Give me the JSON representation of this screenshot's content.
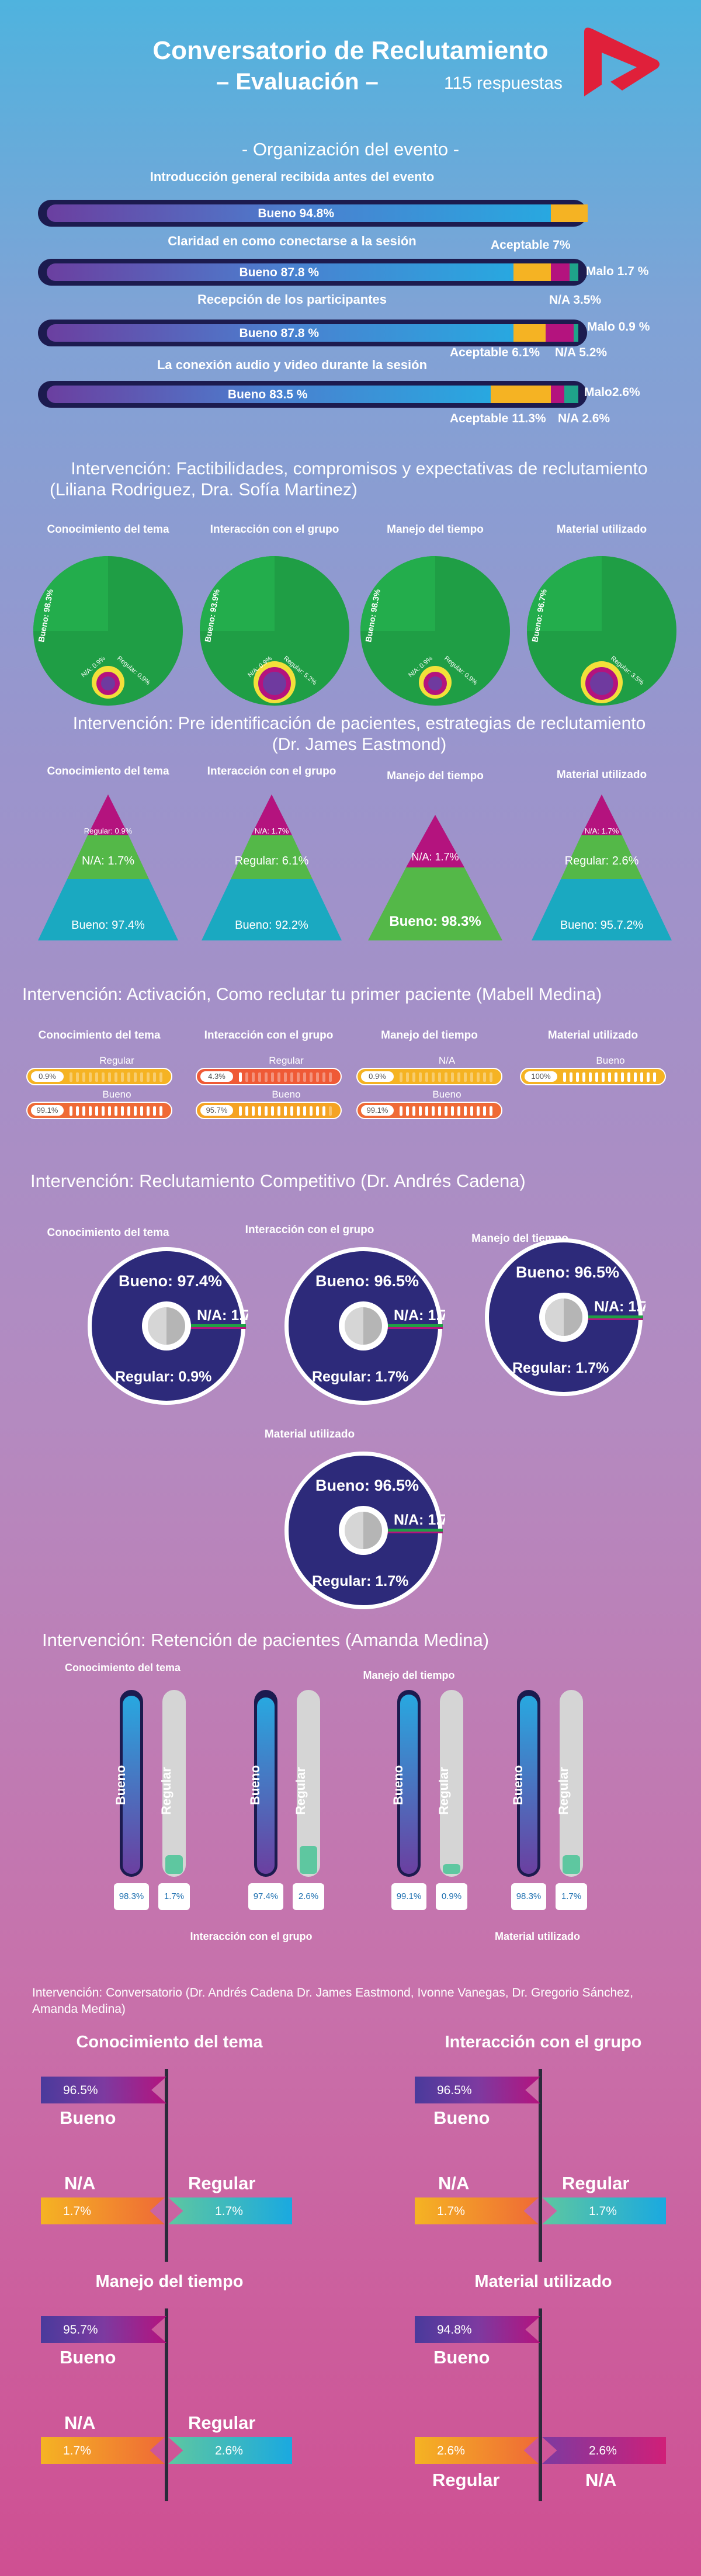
{
  "header": {
    "title": "Conversatorio de Reclutamiento",
    "subtitle": "– Evaluación –",
    "responses": "115 respuestas"
  },
  "colors": {
    "navy": "#1c1b4f",
    "green": "#1f9e45",
    "teal": "#1aa9c1",
    "magenta": "#b4137e",
    "yellow": "#f5b323",
    "orange": "#ef6a36",
    "red": "#e0203a",
    "lightgreen": "#7fc45a"
  },
  "org": {
    "title": "- Organización del evento -",
    "rows": [
      {
        "question": "Introducción general recibida antes del evento",
        "bueno_label": "Bueno 94.8%",
        "bueno": 94.8,
        "aceptable": 7,
        "malo": 0,
        "na": 0,
        "side_labels": [
          "Aceptable 7%"
        ]
      },
      {
        "question": "Claridad en como conectarse a la sesión",
        "bueno_label": "Bueno 87.8 %",
        "bueno": 87.8,
        "aceptable": 7,
        "malo": 1.7,
        "na": 3.5,
        "side_labels": [
          "Malo 1.7 %",
          "N/A 3.5%"
        ]
      },
      {
        "question": "Recepción de los participantes",
        "bueno_label": "Bueno 87.8 %",
        "bueno": 87.8,
        "aceptable": 6.1,
        "malo": 0.9,
        "na": 5.2,
        "side_labels": [
          "Malo 0.9 %",
          "Aceptable 6.1%",
          "N/A 5.2%"
        ]
      },
      {
        "question": "La conexión audio y video durante la sesión",
        "bueno_label": "Bueno 83.5 %",
        "bueno": 83.5,
        "aceptable": 11.3,
        "malo": 2.6,
        "na": 2.6,
        "side_labels": [
          "Malo2.6%",
          "Aceptable 11.3%",
          "N/A 2.6%"
        ]
      }
    ]
  },
  "int1": {
    "title": "Intervención: Factibilidades, compromisos y expectativas de reclutamiento",
    "speakers": "(Liliana Rodriguez, Dra. Sofía Martinez)",
    "charts": [
      {
        "label": "Conocimiento del tema",
        "bueno_label": "Bueno: 98.3%",
        "na_label": "N/A: 0.9%",
        "reg_label": "Regular: 0.9%",
        "bueno": 98.3,
        "regular": 0.9,
        "na": 0.9
      },
      {
        "label": "Interacción con el grupo",
        "bueno_label": "Bueno: 93.9%",
        "na_label": "N/A: 0.9%",
        "reg_label": "Regular: 5.2%",
        "bueno": 93.9,
        "regular": 5.2,
        "na": 0.9
      },
      {
        "label": "Manejo del tiempo",
        "bueno_label": "Bueno: 98.3%",
        "na_label": "N/A: 0.9%",
        "reg_label": "Regular: 0.9%",
        "bueno": 98.3,
        "regular": 0.9,
        "na": 0.9
      },
      {
        "label": "Material utilizado",
        "bueno_label": "Bueno: 96.7%",
        "na_label": "",
        "reg_label": "Regular: 3.5%",
        "bueno": 96.7,
        "regular": 3.5,
        "na": 0
      }
    ]
  },
  "int2": {
    "title": "Intervención: Pre identificación de pacientes, estrategias de reclutamiento",
    "speakers": "(Dr. James Eastmond)",
    "charts": [
      {
        "label": "Conocimiento del tema",
        "top": "Regular: 0.9%",
        "mid": "N/A: 1.7%",
        "bottom": "Bueno: 97.4%"
      },
      {
        "label": "Interacción con el grupo",
        "top": "N/A: 1.7%",
        "mid": "Regular: 6.1%",
        "bottom": "Bueno: 92.2%"
      },
      {
        "label": "Manejo del tiempo",
        "top": "",
        "mid": "N/A: 1.7%",
        "bottom": "Bueno: 98.3%"
      },
      {
        "label": "Material utilizado",
        "top": "N/A: 1.7%",
        "mid": "Regular: 2.6%",
        "bottom": "Bueno: 95.7.2%"
      }
    ]
  },
  "int3": {
    "title": "Intervención: Activación, Como reclutar tu primer paciente (Mabell Medina)",
    "charts": [
      {
        "label": "Conocimiento del tema",
        "bars": [
          {
            "cat": "Regular",
            "val": "0.9%",
            "pct": 0.9,
            "color": "#f5b323"
          },
          {
            "cat": "Bueno",
            "val": "99.1%",
            "pct": 99.1,
            "color": "#ef6a36"
          }
        ]
      },
      {
        "label": "Interacción con el grupo",
        "bars": [
          {
            "cat": "Regular",
            "val": "4.3%",
            "pct": 4.3,
            "color": "#ef5a36"
          },
          {
            "cat": "Bueno",
            "val": "95.7%",
            "pct": 95.7,
            "color": "#f5a323"
          }
        ]
      },
      {
        "label": "Manejo del tiempo",
        "bars": [
          {
            "cat": "N/A",
            "val": "0.9%",
            "pct": 0.9,
            "color": "#f5b323"
          },
          {
            "cat": "Bueno",
            "val": "99.1%",
            "pct": 99.1,
            "color": "#ef6a36"
          }
        ]
      },
      {
        "label": "Material utilizado",
        "bars": [
          {
            "cat": "Bueno",
            "val": "100%",
            "pct": 100,
            "color": "#f5b323"
          }
        ]
      }
    ]
  },
  "int4": {
    "title": "Intervención: Reclutamiento Competitivo (Dr. Andrés Cadena)",
    "charts": [
      {
        "label": "Conocimiento del tema",
        "bueno": "Bueno: 97.4%",
        "na": "N/A: 1.7%",
        "regular": "Regular: 0.9%"
      },
      {
        "label": "Interacción con el grupo",
        "bueno": "Bueno: 96.5%",
        "na": "N/A: 1.7%",
        "regular": "Regular: 1.7%"
      },
      {
        "label": "Manejo del tiempo",
        "bueno": "Bueno: 96.5%",
        "na": "N/A: 1.7%",
        "regular": "Regular: 1.7%"
      },
      {
        "label": "Material utilizado",
        "bueno": "Bueno: 96.5%",
        "na": "N/A: 1.7%",
        "regular": "Regular: 1.7%"
      }
    ]
  },
  "int5": {
    "title": "Intervención: Retención de pacientes (Amanda Medina)",
    "charts": [
      {
        "label": "Conocimiento del tema",
        "bueno": "98.3%",
        "regular": "1.7%",
        "bueno_pct": 98.3,
        "regular_pct": 1.7
      },
      {
        "label": "Interacción con el grupo",
        "bueno": "97.4%",
        "regular": "2.6%",
        "bueno_pct": 97.4,
        "regular_pct": 2.6
      },
      {
        "label": "Manejo del tiempo",
        "bueno": "99.1%",
        "regular": "0.9%",
        "bueno_pct": 99.1,
        "regular_pct": 0.9
      },
      {
        "label": "Material utilizado",
        "bueno": "98.3%",
        "regular": "1.7%",
        "bueno_pct": 98.3,
        "regular_pct": 1.7
      }
    ],
    "cat_bueno": "Bueno",
    "cat_regular": "Regular"
  },
  "int6": {
    "title": "Intervención: Conversatorio (Dr. Andrés Cadena Dr. James Eastmond, Ivonne Vanegas, Dr. Gregorio Sánchez,",
    "title2": "Amanda Medina)",
    "charts": [
      {
        "label": "Conocimiento del tema",
        "bueno": "96.5%",
        "na": "1.7%",
        "regular": "1.7%",
        "na_word": "N/A",
        "reg_word": "Regular",
        "bueno_word": "Bueno"
      },
      {
        "label": "Interacción con el grupo",
        "bueno": "96.5%",
        "na": "1.7%",
        "regular": "1.7%",
        "na_word": "N/A",
        "reg_word": "Regular",
        "bueno_word": "Bueno"
      },
      {
        "label": "Manejo del tiempo",
        "bueno": "95.7%",
        "na": "1.7%",
        "regular": "2.6%",
        "na_word": "N/A",
        "reg_word": "Regular",
        "bueno_word": "Bueno"
      },
      {
        "label": "Material utilizado",
        "bueno": "94.8%",
        "na": "2.6%",
        "regular": "2.6%",
        "na_word": "N/A",
        "reg_word": "Regular",
        "bueno_word": "Bueno"
      }
    ]
  },
  "chart_data": [
    {
      "type": "bar",
      "title": "- Organización del evento -",
      "categories": [
        "Introducción general recibida antes del evento",
        "Claridad en como conectarse a la sesión",
        "Recepción de los participantes",
        "La conexión audio y video durante la sesión"
      ],
      "series": [
        {
          "name": "Bueno",
          "values": [
            94.8,
            87.8,
            87.8,
            83.5
          ]
        },
        {
          "name": "Aceptable",
          "values": [
            7,
            7,
            6.1,
            11.3
          ]
        },
        {
          "name": "Malo",
          "values": [
            0,
            1.7,
            0.9,
            2.6
          ]
        },
        {
          "name": "N/A",
          "values": [
            0,
            3.5,
            5.2,
            2.6
          ]
        }
      ]
    },
    {
      "type": "pie",
      "title": "Intervención: Factibilidades, compromisos y expectativas de reclutamiento",
      "categories": [
        "Conocimiento del tema",
        "Interacción con el grupo",
        "Manejo del tiempo",
        "Material utilizado"
      ],
      "series": [
        {
          "name": "Bueno",
          "values": [
            98.3,
            93.9,
            98.3,
            96.7
          ]
        },
        {
          "name": "Regular",
          "values": [
            0.9,
            5.2,
            0.9,
            3.5
          ]
        },
        {
          "name": "N/A",
          "values": [
            0.9,
            0.9,
            0.9,
            0
          ]
        }
      ]
    },
    {
      "type": "bar",
      "title": "Intervención: Pre identificación de pacientes, estrategias de reclutamiento",
      "categories": [
        "Conocimiento del tema",
        "Interacción con el grupo",
        "Manejo del tiempo",
        "Material utilizado"
      ],
      "series": [
        {
          "name": "Bueno",
          "values": [
            97.4,
            92.2,
            98.3,
            95.7
          ]
        },
        {
          "name": "Regular",
          "values": [
            0.9,
            6.1,
            0,
            2.6
          ]
        },
        {
          "name": "N/A",
          "values": [
            1.7,
            1.7,
            1.7,
            1.7
          ]
        }
      ]
    },
    {
      "type": "bar",
      "title": "Intervención: Activación, Como reclutar tu primer paciente (Mabell Medina)",
      "categories": [
        "Conocimiento del tema",
        "Interacción con el grupo",
        "Manejo del tiempo",
        "Material utilizado"
      ],
      "series": [
        {
          "name": "Bueno",
          "values": [
            99.1,
            95.7,
            99.1,
            100
          ]
        },
        {
          "name": "Regular",
          "values": [
            0.9,
            4.3,
            0,
            0
          ]
        },
        {
          "name": "N/A",
          "values": [
            0,
            0,
            0.9,
            0
          ]
        }
      ]
    },
    {
      "type": "pie",
      "title": "Intervención: Reclutamiento Competitivo (Dr. Andrés Cadena)",
      "categories": [
        "Conocimiento del tema",
        "Interacción con el grupo",
        "Manejo del tiempo",
        "Material utilizado"
      ],
      "series": [
        {
          "name": "Bueno",
          "values": [
            97.4,
            96.5,
            96.5,
            96.5
          ]
        },
        {
          "name": "Regular",
          "values": [
            0.9,
            1.7,
            1.7,
            1.7
          ]
        },
        {
          "name": "N/A",
          "values": [
            1.7,
            1.7,
            1.7,
            1.7
          ]
        }
      ]
    },
    {
      "type": "bar",
      "title": "Intervención: Retención de pacientes (Amanda Medina)",
      "categories": [
        "Conocimiento del tema",
        "Interacción con el grupo",
        "Manejo del tiempo",
        "Material utilizado"
      ],
      "series": [
        {
          "name": "Bueno",
          "values": [
            98.3,
            97.4,
            99.1,
            98.3
          ]
        },
        {
          "name": "Regular",
          "values": [
            1.7,
            2.6,
            0.9,
            1.7
          ]
        }
      ]
    },
    {
      "type": "bar",
      "title": "Intervención: Conversatorio",
      "categories": [
        "Conocimiento del tema",
        "Interacción con el grupo",
        "Manejo del tiempo",
        "Material utilizado"
      ],
      "series": [
        {
          "name": "Bueno",
          "values": [
            96.5,
            96.5,
            95.7,
            94.8
          ]
        },
        {
          "name": "N/A",
          "values": [
            1.7,
            1.7,
            1.7,
            2.6
          ]
        },
        {
          "name": "Regular",
          "values": [
            1.7,
            1.7,
            2.6,
            2.6
          ]
        }
      ]
    }
  ]
}
